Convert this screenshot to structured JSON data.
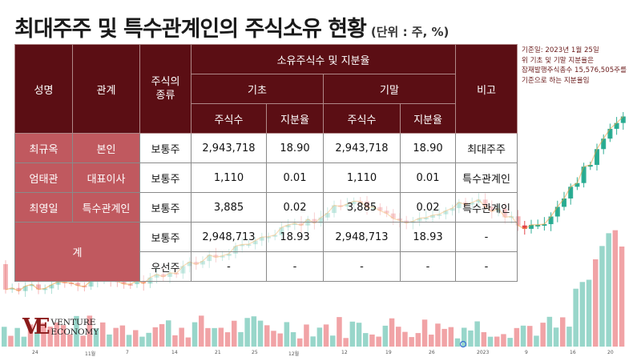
{
  "title": "최대주주 및 특수관계인의 주식소유 현황",
  "unit": "(단위 : 주, %)",
  "headers": {
    "name": "성명",
    "relation": "관계",
    "stock_type": "주식의 종류",
    "holdings": "소유주식수 및 지분율",
    "begin": "기초",
    "end": "기말",
    "shares": "주식수",
    "ratio": "지분율",
    "remark": "비고"
  },
  "rows": [
    {
      "name": "최규옥",
      "relation": "본인",
      "type": "보통주",
      "begin_shares": "2,943,718",
      "begin_ratio": "18.90",
      "end_shares": "2,943,718",
      "end_ratio": "18.90",
      "remark": "최대주주"
    },
    {
      "name": "엄태관",
      "relation": "대표이사",
      "type": "보통주",
      "begin_shares": "1,110",
      "begin_ratio": "0.01",
      "end_shares": "1,110",
      "end_ratio": "0.01",
      "remark": "특수관계인"
    },
    {
      "name": "최영일",
      "relation": "특수관계인",
      "type": "보통주",
      "begin_shares": "3,885",
      "begin_ratio": "0.02",
      "end_shares": "3,885",
      "end_ratio": "0.02",
      "remark": "특수관계인"
    }
  ],
  "total": {
    "label": "계",
    "common": {
      "type": "보통주",
      "begin_shares": "2,948,713",
      "begin_ratio": "18.93",
      "end_shares": "2,948,713",
      "end_ratio": "18.93",
      "remark": "-"
    },
    "preferred": {
      "type": "우선주",
      "begin_shares": "-",
      "begin_ratio": "-",
      "end_shares": "-",
      "end_ratio": "-",
      "remark": "-"
    }
  },
  "note": [
    "기준일: 2023년 1월 25일",
    "위 기초 및 기말 지분율은",
    "잠재발행주식총수 15,576,505주를",
    "기준으로 하는 지분율임"
  ],
  "logo": {
    "mark": "VE",
    "line1": "VENTURE",
    "line2": "ECONOMY"
  },
  "x_ticks": [
    "24",
    "11월",
    "7",
    "14",
    "21",
    "25",
    "12월",
    "12",
    "19",
    "26",
    "2023",
    "9",
    "16",
    "20"
  ],
  "colors": {
    "header_bg": "#5b0e14",
    "name_bg": "#c0595f",
    "up": "#1aa58a",
    "down": "#e0343a",
    "line": "#f0a040"
  }
}
